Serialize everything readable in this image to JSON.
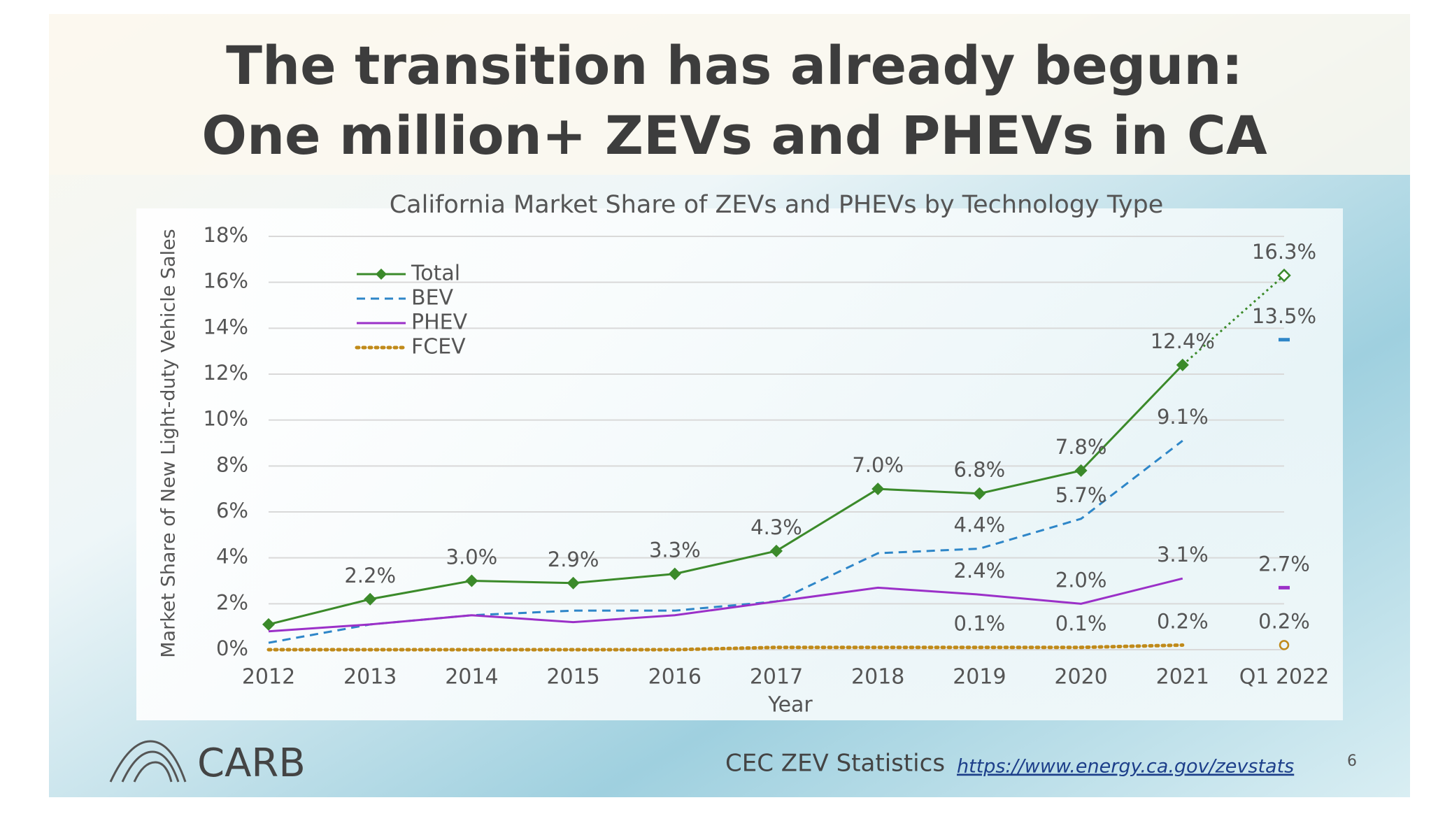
{
  "slide": {
    "title_lines": [
      "The transition has already begun:",
      "One million+ ZEVs and PHEVs in CA"
    ],
    "footer": {
      "logo": "CARB",
      "source": "CEC ZEV Statistics",
      "link": "https://www.energy.ca.gov/zevstats",
      "page": "6"
    }
  },
  "chart_data": {
    "type": "line",
    "title": "California Market Share of ZEVs and PHEVs by Technology Type",
    "x_label": "Year",
    "y_label": "Market Share of New Light-duty Vehicle Sales",
    "categories": [
      "2012",
      "2013",
      "2014",
      "2015",
      "2016",
      "2017",
      "2018",
      "2019",
      "2020",
      "2021",
      "Q1 2022"
    ],
    "ylim": [
      0,
      18
    ],
    "yticks": [
      {
        "value": 0,
        "label": "0%"
      },
      {
        "value": 2,
        "label": "2%"
      },
      {
        "value": 4,
        "label": "4%"
      },
      {
        "value": 6,
        "label": "6%"
      },
      {
        "value": 8,
        "label": "8%"
      },
      {
        "value": 10,
        "label": "10%"
      },
      {
        "value": 12,
        "label": "12%"
      },
      {
        "value": 14,
        "label": "14%"
      },
      {
        "value": 16,
        "label": "16%"
      },
      {
        "value": 18,
        "label": "18%"
      }
    ],
    "grid": true,
    "legend": "upper left",
    "series": [
      {
        "name": "Total",
        "color": "#3b8a2a",
        "style": "solid",
        "marker": "diamond",
        "values": [
          1.1,
          2.2,
          3.0,
          2.9,
          3.3,
          4.3,
          7.0,
          6.8,
          7.8,
          12.4,
          16.3
        ],
        "value_labels": [
          null,
          "2.2%",
          "3.0%",
          "2.9%",
          "3.3%",
          "4.3%",
          "7.0%",
          "6.8%",
          "7.8%",
          "12.4%",
          "16.3%"
        ]
      },
      {
        "name": "BEV",
        "color": "#2e86c8",
        "style": "dashed",
        "marker": null,
        "values": [
          0.3,
          1.1,
          1.5,
          1.7,
          1.7,
          2.1,
          4.2,
          4.4,
          5.7,
          9.1,
          13.5
        ],
        "value_labels": [
          null,
          null,
          null,
          null,
          null,
          null,
          null,
          "4.4%",
          "5.7%",
          "9.1%",
          "13.5%"
        ]
      },
      {
        "name": "PHEV",
        "color": "#9b30c8",
        "style": "solid",
        "marker": null,
        "values": [
          0.8,
          1.1,
          1.5,
          1.2,
          1.5,
          2.1,
          2.7,
          2.4,
          2.0,
          3.1,
          2.7
        ],
        "value_labels": [
          null,
          null,
          null,
          null,
          null,
          null,
          null,
          "2.4%",
          "2.0%",
          "3.1%",
          "2.7%"
        ]
      },
      {
        "name": "FCEV",
        "color": "#c08a1a",
        "style": "dotted",
        "marker": null,
        "values": [
          0.0,
          0.0,
          0.0,
          0.0,
          0.0,
          0.1,
          0.1,
          0.1,
          0.1,
          0.2,
          0.2
        ],
        "value_labels": [
          null,
          null,
          null,
          null,
          null,
          null,
          null,
          "0.1%",
          "0.1%",
          "0.2%",
          "0.2%"
        ]
      }
    ]
  }
}
